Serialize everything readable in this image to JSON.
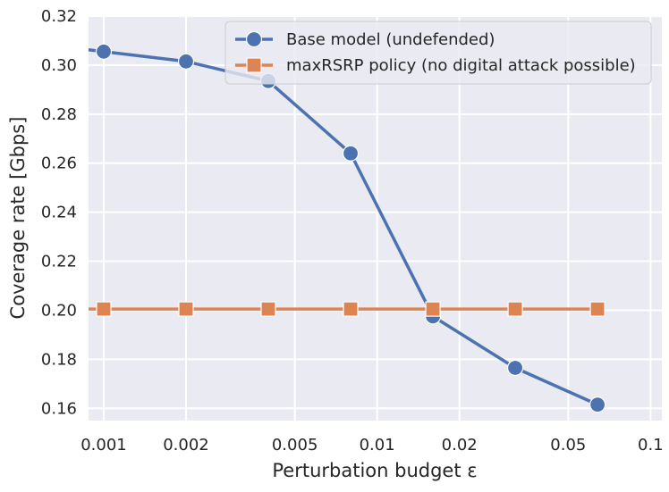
{
  "chart_data": {
    "type": "line",
    "xlabel": "Perturbation budget ε",
    "ylabel": "Coverage rate [Gbps]",
    "x_scale": "log",
    "xlim": [
      0.00088,
      0.11
    ],
    "ylim": [
      0.155,
      0.32
    ],
    "xticks": [
      0.001,
      0.002,
      0.005,
      0.01,
      0.02,
      0.05,
      0.1
    ],
    "xtick_labels": [
      "0.001",
      "0.002",
      "0.005",
      "0.01",
      "0.02",
      "0.05",
      "0.1"
    ],
    "yticks": [
      0.16,
      0.18,
      0.2,
      0.22,
      0.24,
      0.26,
      0.28,
      0.3,
      0.32
    ],
    "ytick_labels": [
      "0.16",
      "0.18",
      "0.20",
      "0.22",
      "0.24",
      "0.26",
      "0.28",
      "0.30",
      "0.32"
    ],
    "grid": true,
    "legend_position": "top-right",
    "series": [
      {
        "name": "Base model (undefended)",
        "color": "#4c72b0",
        "marker": "circle",
        "line_extends_to_axis_left": true,
        "x": [
          0.001,
          0.002,
          0.004,
          0.008,
          0.016,
          0.032,
          0.064
        ],
        "y": [
          0.3055,
          0.3015,
          0.2935,
          0.264,
          0.1975,
          0.1765,
          0.1615
        ]
      },
      {
        "name": "maxRSRP policy (no digital attack possible)",
        "color": "#dd8452",
        "marker": "square",
        "line_extends_to_axis_left": true,
        "x": [
          0.001,
          0.002,
          0.004,
          0.008,
          0.016,
          0.032,
          0.064
        ],
        "y": [
          0.2005,
          0.2005,
          0.2005,
          0.2005,
          0.2005,
          0.2005,
          0.2005
        ]
      }
    ]
  }
}
